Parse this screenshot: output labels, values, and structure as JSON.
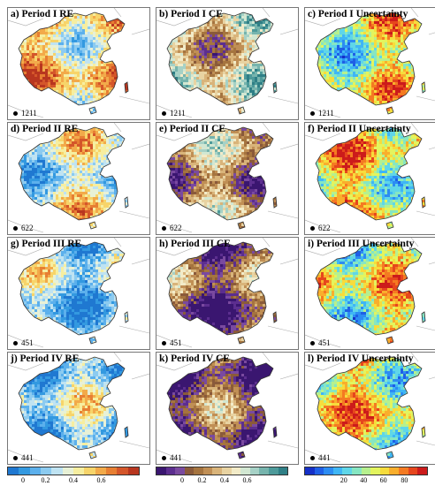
{
  "panels": [
    {
      "id": "a",
      "label": "a) Period I  RE",
      "stations": "1211",
      "cmap": "re",
      "level": 0.62
    },
    {
      "id": "b",
      "label": "b) Period I  CE",
      "stations": "1211",
      "cmap": "ce",
      "level": 0.55
    },
    {
      "id": "c",
      "label": "c) Period I  Uncertainty",
      "stations": "1211",
      "cmap": "unc",
      "level": 0.55
    },
    {
      "id": "d",
      "label": "d) Period II  RE",
      "stations": "622",
      "cmap": "re",
      "level": 0.42
    },
    {
      "id": "e",
      "label": "e) Period II  CE",
      "stations": "622",
      "cmap": "ce",
      "level": 0.38
    },
    {
      "id": "f",
      "label": "f) Period II  Uncertainty",
      "stations": "622",
      "cmap": "unc",
      "level": 0.62
    },
    {
      "id": "g",
      "label": "g) Period III  RE",
      "stations": "451",
      "cmap": "re",
      "level": 0.3
    },
    {
      "id": "h",
      "label": "h) Period III  CE",
      "stations": "451",
      "cmap": "ce",
      "level": 0.25
    },
    {
      "id": "i",
      "label": "i) Period III  Uncertainty",
      "stations": "451",
      "cmap": "unc",
      "level": 0.58
    },
    {
      "id": "j",
      "label": "j) Period IV  RE",
      "stations": "441",
      "cmap": "re",
      "level": 0.3
    },
    {
      "id": "k",
      "label": "k) Period IV  CE",
      "stations": "441",
      "cmap": "ce",
      "level": 0.2
    },
    {
      "id": "l",
      "label": "l) Period IV  Uncertainty",
      "stations": "441",
      "cmap": "unc",
      "level": 0.6
    }
  ],
  "colorbars": {
    "re": {
      "colors": [
        "#1f78d1",
        "#3399e0",
        "#5cb0ec",
        "#8ccbf0",
        "#bfe3f2",
        "#e8f1d6",
        "#f6eea0",
        "#f7d46a",
        "#f2aa4a",
        "#e77f33",
        "#d4562a",
        "#b8361f"
      ],
      "ticks": [
        {
          "v": "0",
          "p": 0.12
        },
        {
          "v": "0.2",
          "p": 0.29
        },
        {
          "v": "0.4",
          "p": 0.5
        },
        {
          "v": "0.6",
          "p": 0.71
        }
      ]
    },
    "ce": {
      "colors": [
        "#3a1670",
        "#5c2e8f",
        "#7a4a9f",
        "#8a5a3a",
        "#a5743f",
        "#c08f55",
        "#d9b47a",
        "#e8d3a2",
        "#f2ebc8",
        "#d2e7d2",
        "#a6d1c6",
        "#76b4ad",
        "#4d9a9a",
        "#2f7f86"
      ],
      "ticks": [
        {
          "v": "0",
          "p": 0.2
        },
        {
          "v": "0.2",
          "p": 0.35
        },
        {
          "v": "0.4",
          "p": 0.52
        },
        {
          "v": "0.6",
          "p": 0.69
        }
      ]
    },
    "unc": {
      "colors": [
        "#1530c8",
        "#1f5fe6",
        "#2c8cf2",
        "#3fb6f5",
        "#5fd6e8",
        "#86e6c2",
        "#b6f08e",
        "#e3f45e",
        "#f7dc3c",
        "#f9ae2c",
        "#f47a22",
        "#e6461d",
        "#cc1b1b"
      ],
      "ticks": [
        {
          "v": "20",
          "p": 0.32
        },
        {
          "v": "40",
          "p": 0.48
        },
        {
          "v": "60",
          "p": 0.64
        },
        {
          "v": "80",
          "p": 0.81
        }
      ]
    }
  }
}
